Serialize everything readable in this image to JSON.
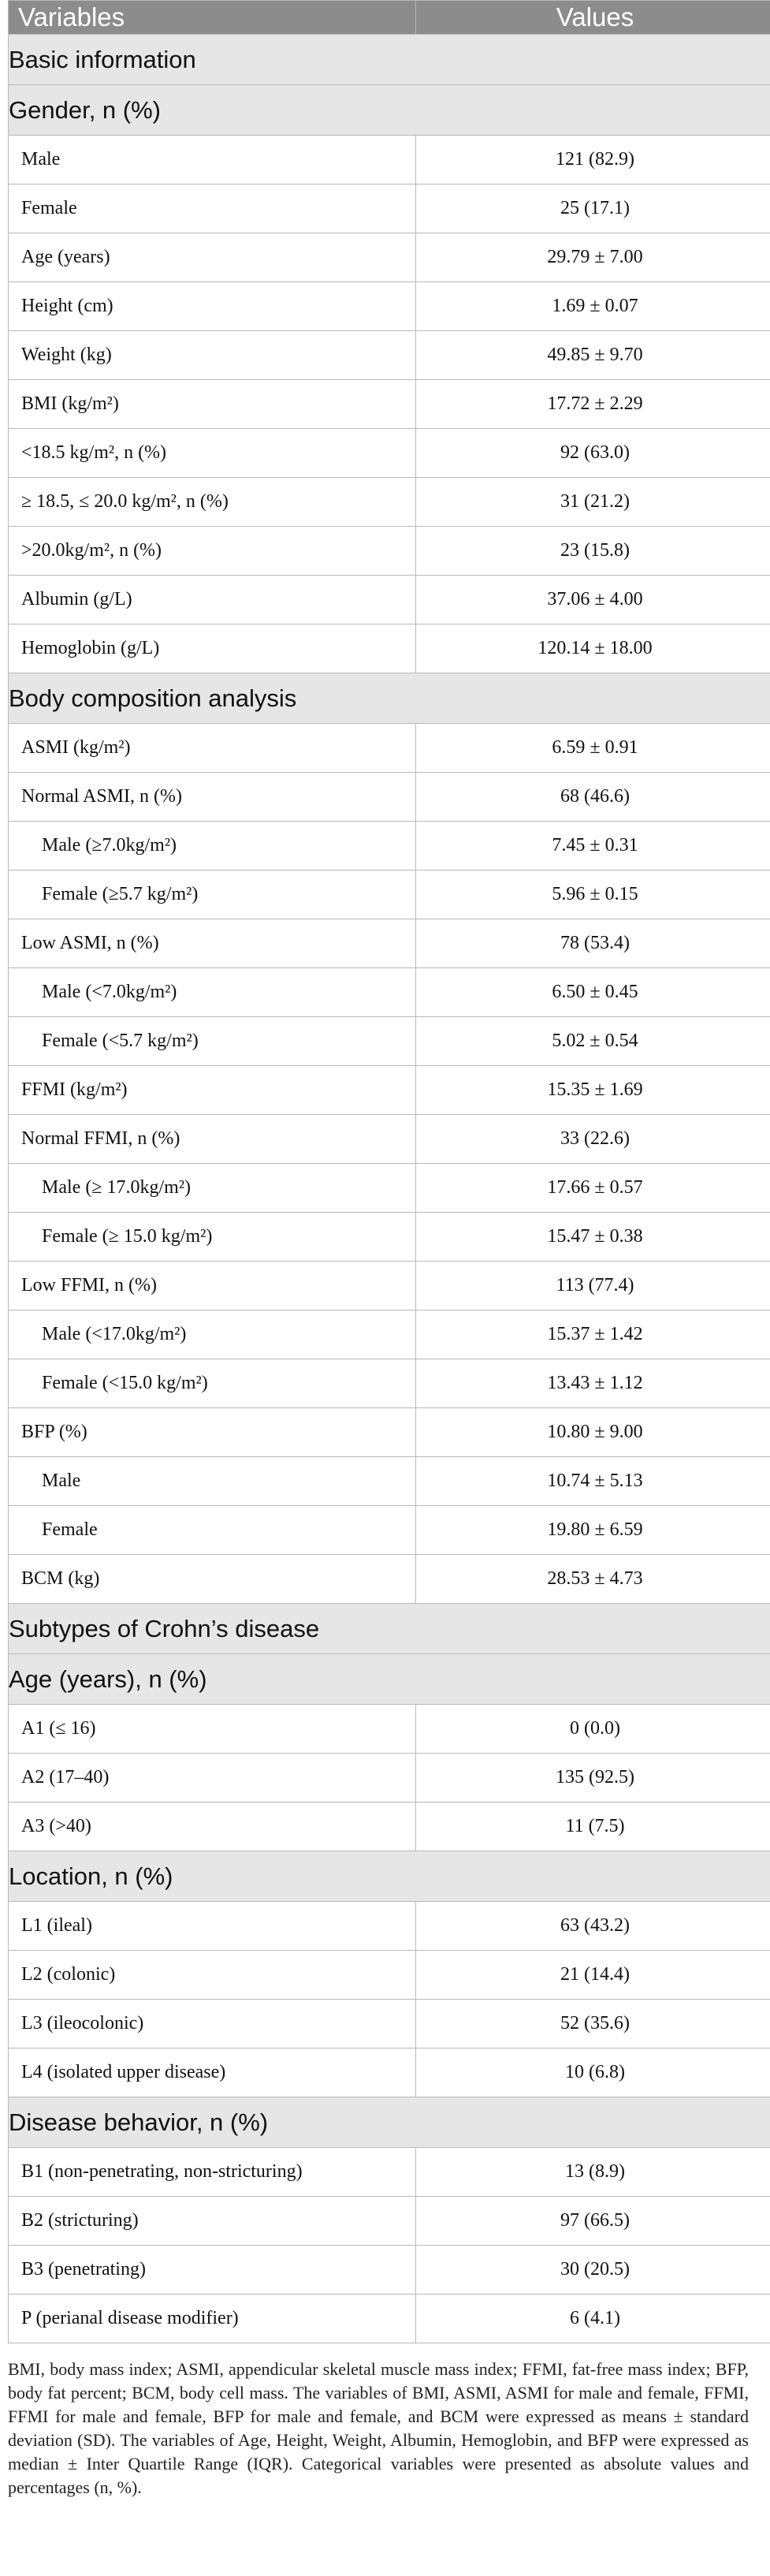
{
  "header": {
    "col1": "Variables",
    "col2": "Values"
  },
  "sections": [
    {
      "title": "Basic information",
      "rows": []
    },
    {
      "title": "Gender, n (%)",
      "rows": [
        {
          "label": "Male",
          "value": "121 (82.9)"
        },
        {
          "label": "Female",
          "value": "25 (17.1)"
        },
        {
          "label": "Age (years)",
          "value": "29.79 ± 7.00"
        },
        {
          "label": "Height (cm)",
          "value": "1.69 ± 0.07"
        },
        {
          "label": "Weight (kg)",
          "value": "49.85 ± 9.70"
        },
        {
          "label": "BMI (kg/m²)",
          "value": "17.72 ± 2.29"
        },
        {
          "label": "<18.5 kg/m², n (%)",
          "value": "92 (63.0)"
        },
        {
          "label": "≥ 18.5, ≤ 20.0 kg/m², n (%)",
          "value": "31 (21.2)"
        },
        {
          "label": ">20.0kg/m², n (%)",
          "value": "23 (15.8)"
        },
        {
          "label": "Albumin (g/L)",
          "value": "37.06 ± 4.00"
        },
        {
          "label": "Hemoglobin (g/L)",
          "value": "120.14 ± 18.00"
        }
      ]
    },
    {
      "title": "Body composition analysis",
      "rows": [
        {
          "label": "ASMI (kg/m²)",
          "value": "6.59 ± 0.91"
        },
        {
          "label": "Normal ASMI, n (%)",
          "value": "68 (46.6)"
        },
        {
          "label": "Male (≥7.0kg/m²)",
          "value": "7.45 ± 0.31",
          "indent": true
        },
        {
          "label": "Female (≥5.7 kg/m²)",
          "value": "5.96 ± 0.15",
          "indent": true
        },
        {
          "label": "Low ASMI, n (%)",
          "value": "78 (53.4)"
        },
        {
          "label": "Male (<7.0kg/m²)",
          "value": "6.50 ± 0.45",
          "indent": true
        },
        {
          "label": "Female (<5.7 kg/m²)",
          "value": "5.02 ± 0.54",
          "indent": true
        },
        {
          "label": "FFMI (kg/m²)",
          "value": "15.35 ± 1.69"
        },
        {
          "label": "Normal FFMI, n (%)",
          "value": "33 (22.6)"
        },
        {
          "label": "Male (≥ 17.0kg/m²)",
          "value": "17.66 ± 0.57",
          "indent": true
        },
        {
          "label": "Female (≥ 15.0 kg/m²)",
          "value": "15.47 ± 0.38",
          "indent": true
        },
        {
          "label": "Low FFMI, n (%)",
          "value": "113 (77.4)"
        },
        {
          "label": "Male (<17.0kg/m²)",
          "value": "15.37 ± 1.42",
          "indent": true
        },
        {
          "label": "Female (<15.0 kg/m²)",
          "value": "13.43 ± 1.12",
          "indent": true
        },
        {
          "label": "BFP (%)",
          "value": "10.80 ± 9.00"
        },
        {
          "label": "Male",
          "value": "10.74 ± 5.13",
          "indent": true
        },
        {
          "label": "Female",
          "value": "19.80 ± 6.59",
          "indent": true
        },
        {
          "label": "BCM (kg)",
          "value": "28.53 ± 4.73"
        }
      ]
    },
    {
      "title": "Subtypes of Crohn’s disease",
      "rows": []
    },
    {
      "title": "Age (years), n (%)",
      "rows": [
        {
          "label": "A1 (≤ 16)",
          "value": "0 (0.0)"
        },
        {
          "label": "A2 (17–40)",
          "value": "135 (92.5)"
        },
        {
          "label": "A3 (>40)",
          "value": "11 (7.5)"
        }
      ]
    },
    {
      "title": "Location, n (%)",
      "rows": [
        {
          "label": "L1 (ileal)",
          "value": "63 (43.2)"
        },
        {
          "label": "L2 (colonic)",
          "value": "21 (14.4)"
        },
        {
          "label": "L3 (ileocolonic)",
          "value": "52 (35.6)"
        },
        {
          "label": "L4 (isolated upper disease)",
          "value": "10 (6.8)"
        }
      ]
    },
    {
      "title": "Disease behavior, n (%)",
      "rows": [
        {
          "label": "B1 (non-penetrating, non-stricturing)",
          "value": "13 (8.9)"
        },
        {
          "label": "B2 (stricturing)",
          "value": "97 (66.5)"
        },
        {
          "label": "B3 (penetrating)",
          "value": "30 (20.5)"
        },
        {
          "label": "P (perianal disease modifier)",
          "value": "6 (4.1)"
        }
      ]
    }
  ],
  "footnote": "BMI, body mass index; ASMI, appendicular skeletal muscle mass index; FFMI, fat-free mass index; BFP, body fat percent; BCM, body cell mass. The variables of BMI, ASMI, ASMI for male and female, FFMI, FFMI for male and female, BFP for male and female, and BCM were expressed as means ± standard deviation (SD). The variables of Age, Height, Weight, Albumin, Hemoglobin, and BFP were expressed as median ± Inter Quartile Range (IQR). Categorical variables were presented as absolute values and percentages (n, %)."
}
